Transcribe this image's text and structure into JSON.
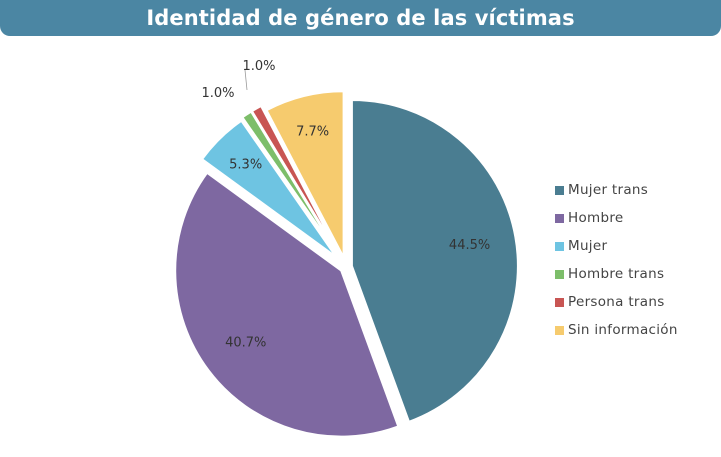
{
  "title": "Identidad de género de las víctimas",
  "chart_data": {
    "type": "pie",
    "title": "Identidad de género de las víctimas",
    "categories": [
      "Mujer trans",
      "Hombre",
      "Mujer",
      "Hombre trans",
      "Persona trans",
      "Sin información"
    ],
    "values": [
      44.5,
      40.7,
      5.3,
      1.0,
      1.0,
      7.7
    ],
    "labels": [
      "44.5%",
      "40.7%",
      "5.3%",
      "1.0%",
      "1.0%",
      "7.7%"
    ],
    "colors": [
      "#4a7d91",
      "#7e68a1",
      "#6ec4e2",
      "#7dbe6a",
      "#c85553",
      "#f6cb6e"
    ],
    "start_angle_deg": 0,
    "direction": "clockwise",
    "exploded": true,
    "legend_position": "right"
  },
  "legend": {
    "items": [
      {
        "label": "Mujer trans",
        "color": "#4a7d91"
      },
      {
        "label": "Hombre",
        "color": "#7e68a1"
      },
      {
        "label": "Mujer",
        "color": "#6ec4e2"
      },
      {
        "label": "Hombre trans",
        "color": "#7dbe6a"
      },
      {
        "label": "Persona trans",
        "color": "#c85553"
      },
      {
        "label": "Sin información",
        "color": "#f6cb6e"
      }
    ]
  }
}
